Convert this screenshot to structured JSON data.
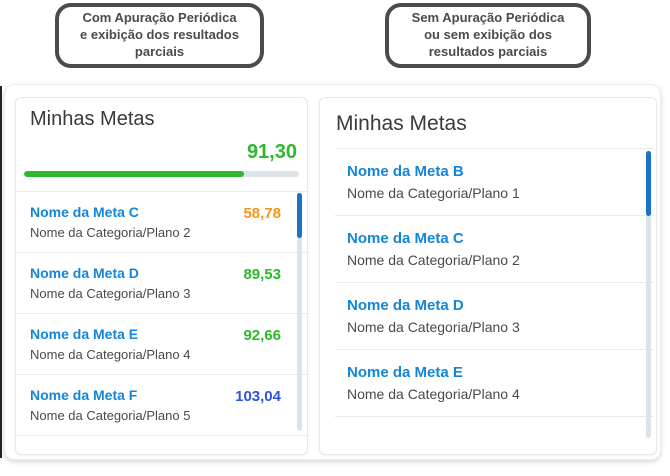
{
  "annotations": {
    "left": {
      "lines": [
        "Com Apuração Periódica",
        "e exibição dos resultados",
        "parciais"
      ]
    },
    "right": {
      "lines": [
        "Sem Apuração Periódica",
        "ou sem exibição dos",
        "resultados parciais"
      ]
    }
  },
  "left_panel": {
    "title": "Minhas Metas",
    "overall_value": "91,30",
    "overall_color": "#2eb82e",
    "progress_width": "80%",
    "items": [
      {
        "name": "Nome da Meta C",
        "category": "Nome da Categoria/Plano 2",
        "value": "58,78",
        "value_color": "#f7941e"
      },
      {
        "name": "Nome da Meta D",
        "category": "Nome da Categoria/Plano 3",
        "value": "89,53",
        "value_color": "#2eb82e"
      },
      {
        "name": "Nome da Meta E",
        "category": "Nome da Categoria/Plano 4",
        "value": "92,66",
        "value_color": "#2eb82e"
      },
      {
        "name": "Nome da Meta F",
        "category": "Nome da Categoria/Plano 5",
        "value": "103,04",
        "value_color": "#2c52e0"
      }
    ]
  },
  "right_panel": {
    "title": "Minhas Metas",
    "items": [
      {
        "name": "Nome da Meta B",
        "category": "Nome da Categoria/Plano 1"
      },
      {
        "name": "Nome da Meta C",
        "category": "Nome da Categoria/Plano 2"
      },
      {
        "name": "Nome da Meta D",
        "category": "Nome da Categoria/Plano 3"
      },
      {
        "name": "Nome da Meta E",
        "category": "Nome da Categoria/Plano 4"
      }
    ]
  },
  "colors": {
    "goal_name_blue": "#1585d8",
    "scrollbar_thumb_blue": "#1d72c8",
    "positive_green": "#2eb82e",
    "warning_orange": "#f7941e",
    "over_target_blue": "#2c52e0"
  }
}
